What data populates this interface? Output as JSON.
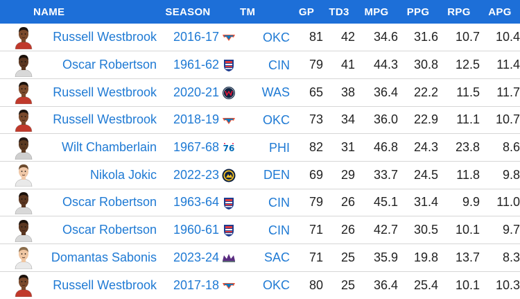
{
  "headers": {
    "name": "NAME",
    "season": "SEASON",
    "team": "TM",
    "gp": "GP",
    "td3": "TD3",
    "mpg": "MPG",
    "ppg": "PPG",
    "rpg": "RPG",
    "apg": "APG"
  },
  "colors": {
    "header_bg": "#1d6fd8",
    "link": "#1f7ad4",
    "row_border": "#d6d6d6"
  },
  "rows": [
    {
      "name": "Russell Westbrook",
      "season": "2016-17",
      "team": "OKC",
      "team_logo_icon": "okc-thunder-logo-icon",
      "avatar_icon": "russell-westbrook-avatar-icon",
      "gp": "81",
      "td3": "42",
      "mpg": "34.6",
      "ppg": "31.6",
      "rpg": "10.7",
      "apg": "10.4"
    },
    {
      "name": "Oscar Robertson",
      "season": "1961-62",
      "team": "CIN",
      "team_logo_icon": "cin-royals-logo-icon",
      "avatar_icon": "oscar-robertson-avatar-icon",
      "gp": "79",
      "td3": "41",
      "mpg": "44.3",
      "ppg": "30.8",
      "rpg": "12.5",
      "apg": "11.4"
    },
    {
      "name": "Russell Westbrook",
      "season": "2020-21",
      "team": "WAS",
      "team_logo_icon": "was-wizards-logo-icon",
      "avatar_icon": "russell-westbrook-avatar-icon",
      "gp": "65",
      "td3": "38",
      "mpg": "36.4",
      "ppg": "22.2",
      "rpg": "11.5",
      "apg": "11.7"
    },
    {
      "name": "Russell Westbrook",
      "season": "2018-19",
      "team": "OKC",
      "team_logo_icon": "okc-thunder-logo-icon",
      "avatar_icon": "russell-westbrook-avatar-icon",
      "gp": "73",
      "td3": "34",
      "mpg": "36.0",
      "ppg": "22.9",
      "rpg": "11.1",
      "apg": "10.7"
    },
    {
      "name": "Wilt Chamberlain",
      "season": "1967-68",
      "team": "PHI",
      "team_logo_icon": "phi-76ers-logo-icon",
      "avatar_icon": "wilt-chamberlain-avatar-icon",
      "gp": "82",
      "td3": "31",
      "mpg": "46.8",
      "ppg": "24.3",
      "rpg": "23.8",
      "apg": "8.6"
    },
    {
      "name": "Nikola Jokic",
      "season": "2022-23",
      "team": "DEN",
      "team_logo_icon": "den-nuggets-logo-icon",
      "avatar_icon": "nikola-jokic-avatar-icon",
      "gp": "69",
      "td3": "29",
      "mpg": "33.7",
      "ppg": "24.5",
      "rpg": "11.8",
      "apg": "9.8"
    },
    {
      "name": "Oscar Robertson",
      "season": "1963-64",
      "team": "CIN",
      "team_logo_icon": "cin-royals-logo-icon",
      "avatar_icon": "oscar-robertson-avatar-icon",
      "gp": "79",
      "td3": "26",
      "mpg": "45.1",
      "ppg": "31.4",
      "rpg": "9.9",
      "apg": "11.0"
    },
    {
      "name": "Oscar Robertson",
      "season": "1960-61",
      "team": "CIN",
      "team_logo_icon": "cin-royals-logo-icon",
      "avatar_icon": "oscar-robertson-avatar-icon",
      "gp": "71",
      "td3": "26",
      "mpg": "42.7",
      "ppg": "30.5",
      "rpg": "10.1",
      "apg": "9.7"
    },
    {
      "name": "Domantas Sabonis",
      "season": "2023-24",
      "team": "SAC",
      "team_logo_icon": "sac-kings-logo-icon",
      "avatar_icon": "domantas-sabonis-avatar-icon",
      "gp": "71",
      "td3": "25",
      "mpg": "35.9",
      "ppg": "19.8",
      "rpg": "13.7",
      "apg": "8.3"
    },
    {
      "name": "Russell Westbrook",
      "season": "2017-18",
      "team": "OKC",
      "team_logo_icon": "okc-thunder-logo-icon",
      "avatar_icon": "russell-westbrook-avatar-icon",
      "gp": "80",
      "td3": "25",
      "mpg": "36.4",
      "ppg": "25.4",
      "rpg": "10.1",
      "apg": "10.3"
    }
  ]
}
